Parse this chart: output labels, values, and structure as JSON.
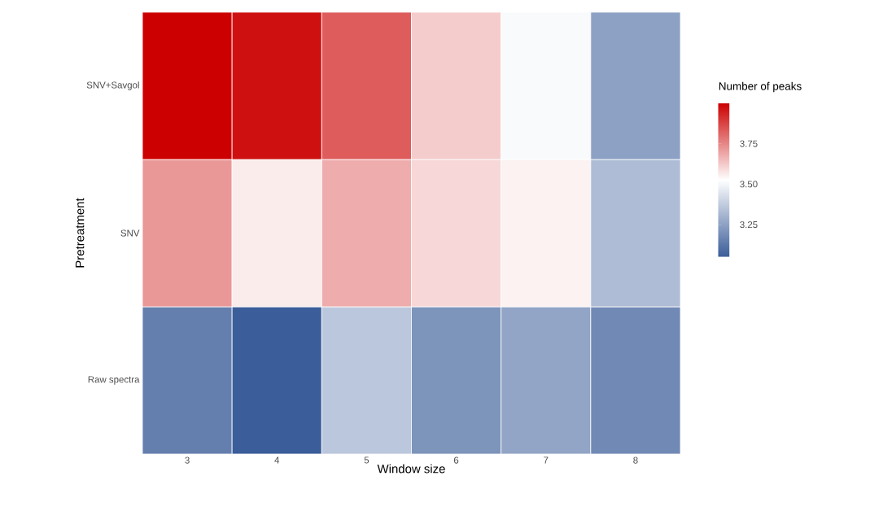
{
  "chart_data": {
    "type": "heatmap",
    "xlabel": "Window size",
    "ylabel": "Pretreatment",
    "clabel": "Number of peaks",
    "categories": [
      "3",
      "4",
      "5",
      "6",
      "7",
      "8"
    ],
    "y_categories": [
      "SNV+Savgol",
      "SNV",
      "Raw spectra"
    ],
    "cells": [
      [
        4.0,
        3.97,
        3.83,
        3.62,
        3.51,
        3.25
      ],
      [
        3.72,
        3.56,
        3.68,
        3.6,
        3.55,
        3.33
      ],
      [
        3.15,
        3.05,
        3.36,
        3.21,
        3.26,
        3.18
      ]
    ],
    "clim": [
      3.05,
      4.0
    ],
    "cticks": [
      {
        "value": 3.25,
        "label": "3.25"
      },
      {
        "value": 3.5,
        "label": "3.50"
      },
      {
        "value": 3.75,
        "label": "3.75"
      }
    ]
  }
}
